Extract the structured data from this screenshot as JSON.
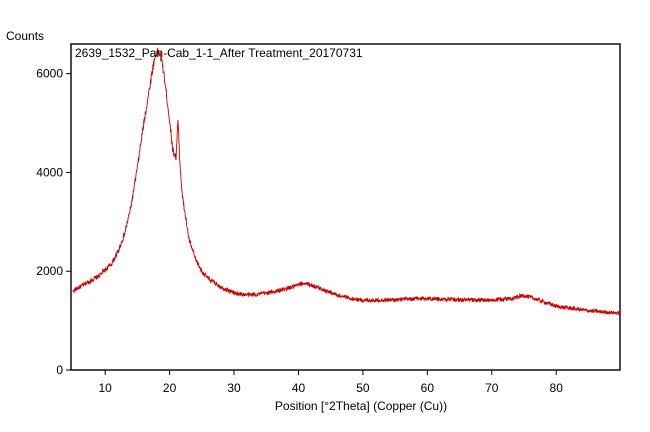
{
  "chart_data": {
    "type": "line",
    "title": "2639_1532_Pan-Cab_1-1_After Treatment_20170731",
    "xlabel": "Position [°2Theta] (Copper (Cu))",
    "ylabel": "Counts",
    "xlim": [
      4.7,
      89.9
    ],
    "ylim": [
      0,
      6600
    ],
    "x_ticks": [
      10,
      20,
      30,
      40,
      50,
      60,
      70,
      80
    ],
    "y_ticks": [
      0,
      2000,
      4000,
      6000
    ],
    "grid": false,
    "series": [
      {
        "color": "#cc0000",
        "x": [
          5,
          7,
          9,
          11,
          12,
          13,
          14,
          15,
          16,
          17,
          17.5,
          18,
          18.5,
          19,
          19.5,
          20,
          20.5,
          21,
          21.3,
          21.6,
          22,
          23,
          24,
          25,
          26,
          28,
          30,
          32,
          34,
          36,
          38,
          40,
          41,
          42,
          44,
          46,
          48,
          50,
          55,
          60,
          65,
          70,
          73,
          75,
          77,
          80,
          85,
          89.9
        ],
        "y": [
          1600,
          1750,
          1900,
          2150,
          2400,
          2750,
          3300,
          4100,
          5000,
          5800,
          6200,
          6450,
          6400,
          6100,
          5600,
          5050,
          4450,
          4300,
          5050,
          4200,
          3500,
          2650,
          2250,
          2000,
          1850,
          1680,
          1560,
          1520,
          1540,
          1580,
          1640,
          1720,
          1760,
          1720,
          1620,
          1520,
          1450,
          1410,
          1420,
          1450,
          1420,
          1410,
          1450,
          1510,
          1430,
          1290,
          1200,
          1150
        ]
      }
    ]
  }
}
